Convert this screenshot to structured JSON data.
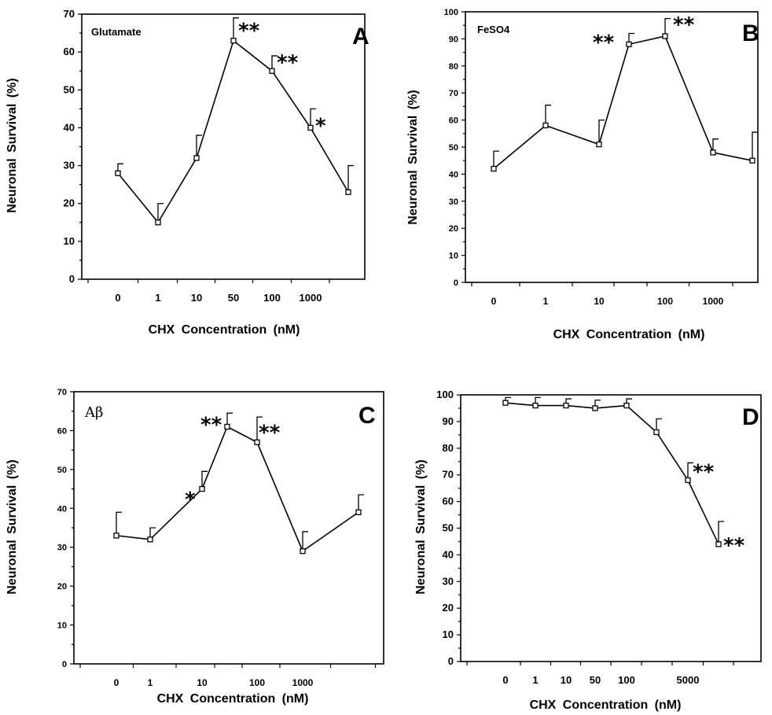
{
  "chart_data": [
    {
      "type": "line",
      "panel_label": "A",
      "annotation": "Glutamate",
      "xlabel": "CHX Concentration (nM)",
      "ylabel": "Neuronal Survival (%)",
      "categories": [
        "0",
        "1",
        "10",
        "50",
        "100",
        "1000",
        ""
      ],
      "values": [
        28,
        15,
        32,
        63,
        55,
        40,
        23
      ],
      "errors": [
        2.5,
        5,
        6,
        6,
        4,
        5,
        7
      ],
      "significance": [
        "",
        "",
        "",
        "**",
        "**",
        "*",
        ""
      ],
      "ylim": [
        0,
        70
      ],
      "yticks": [
        "0",
        "10",
        "20",
        "30",
        "40",
        "50",
        "60",
        "70"
      ],
      "grid": false
    },
    {
      "type": "line",
      "panel_label": "B",
      "annotation": "FeSO4",
      "xlabel": "CHX Concentration (nM)",
      "ylabel": "Neuronal Survival (%)",
      "categories": [
        "0",
        "1",
        "10",
        "",
        "100",
        "1000",
        ""
      ],
      "values": [
        42,
        58,
        51,
        88,
        91,
        48,
        45
      ],
      "errors": [
        6.5,
        7.5,
        9,
        4,
        6.5,
        5,
        10.5
      ],
      "significance": [
        "",
        "",
        "",
        "**",
        "**",
        "",
        ""
      ],
      "ylim": [
        0,
        100
      ],
      "yticks": [
        "0",
        "10",
        "20",
        "30",
        "40",
        "50",
        "60",
        "70",
        "80",
        "90",
        "100"
      ],
      "grid": false
    },
    {
      "type": "line",
      "panel_label": "C",
      "annotation": "Aβ",
      "xlabel": "CHX Concentration (nM)",
      "ylabel": "Neuronal Survival (%)",
      "categories": [
        "0",
        "1",
        "10",
        "",
        "100",
        "1000",
        ""
      ],
      "values": [
        33,
        32,
        45,
        61,
        57,
        29,
        39
      ],
      "errors": [
        6,
        3,
        4.5,
        3.5,
        6.5,
        5,
        4.5
      ],
      "significance": [
        "",
        "",
        "*",
        "**",
        "**",
        "",
        ""
      ],
      "ylim": [
        0,
        70
      ],
      "yticks": [
        "0",
        "10",
        "20",
        "30",
        "40",
        "50",
        "60",
        "70"
      ],
      "grid": false
    },
    {
      "type": "line",
      "panel_label": "D",
      "annotation": "",
      "xlabel": "CHX Concentration (nM)",
      "ylabel": "Neuronal Survival (%)",
      "categories": [
        "0",
        "1",
        "10",
        "50",
        "100",
        "",
        "5000",
        ""
      ],
      "values": [
        97,
        96,
        96,
        95,
        96,
        86,
        68,
        44
      ],
      "errors": [
        2,
        3,
        2.5,
        3,
        2.5,
        5,
        6.5,
        8.5
      ],
      "significance": [
        "",
        "",
        "",
        "",
        "",
        "",
        "**",
        "**"
      ],
      "ylim": [
        0,
        100
      ],
      "yticks": [
        "0",
        "10",
        "20",
        "30",
        "40",
        "50",
        "60",
        "70",
        "80",
        "90",
        "100"
      ],
      "grid": false
    }
  ]
}
